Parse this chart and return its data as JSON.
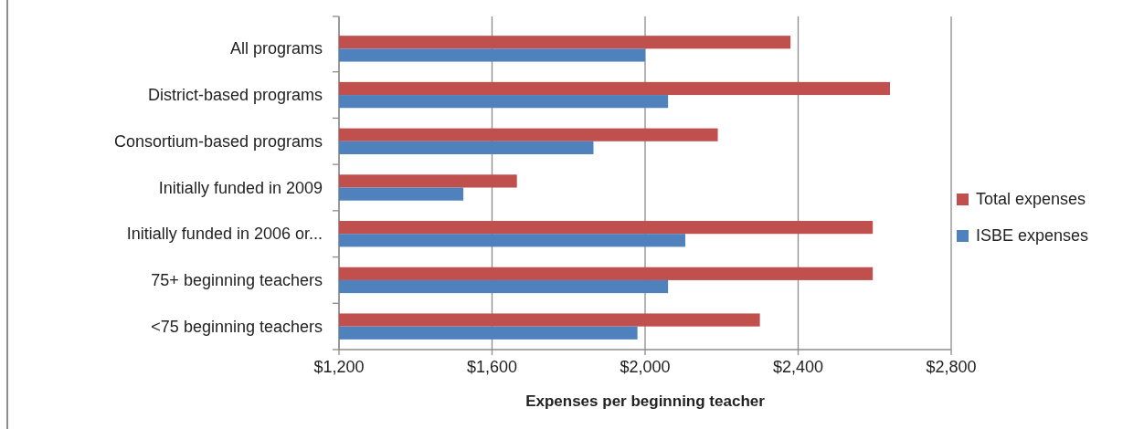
{
  "chart_data": {
    "type": "bar",
    "orientation": "horizontal",
    "categories": [
      "All programs",
      "District-based programs",
      "Consortium-based programs",
      "Initially funded in 2009",
      "Initially funded in 2006 or...",
      "75+ beginning teachers",
      "<75 beginning teachers"
    ],
    "series": [
      {
        "name": "Total expenses",
        "color": "#c0504d",
        "values": [
          2380,
          2640,
          2190,
          1665,
          2595,
          2595,
          2300
        ]
      },
      {
        "name": "ISBE expenses",
        "color": "#4f81bd",
        "values": [
          2000,
          2060,
          1865,
          1525,
          2105,
          2060,
          1980
        ]
      }
    ],
    "xlim": [
      1200,
      2800
    ],
    "xticks": [
      {
        "value": 1200,
        "label": "$1,200"
      },
      {
        "value": 1600,
        "label": "$1,600"
      },
      {
        "value": 2000,
        "label": "$2,000"
      },
      {
        "value": 2400,
        "label": "$2,400"
      },
      {
        "value": 2800,
        "label": "$2,800"
      }
    ],
    "xlabel": "Expenses per beginning teacher",
    "grid": "x",
    "legend": "right"
  }
}
